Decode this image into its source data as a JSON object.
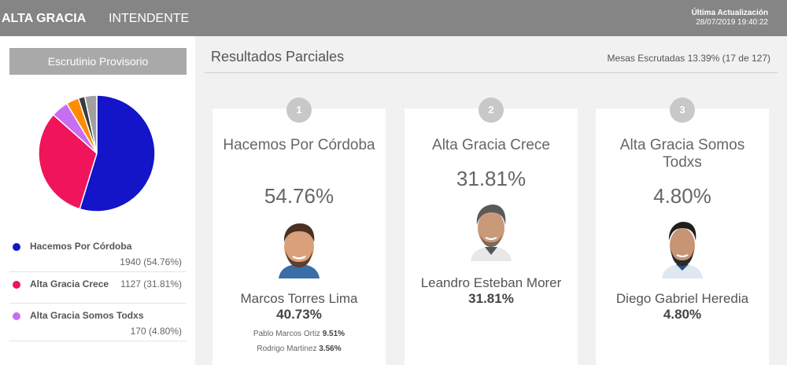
{
  "header": {
    "city": "ALTA GRACIA",
    "office": "INTENDENTE",
    "update_label": "Última Actualización",
    "update_time": "28/07/2019 19:40:22"
  },
  "sidebar": {
    "title": "Escrutinio Provisorio",
    "legend": [
      {
        "name": "Hacemos Por Córdoba",
        "votes": "1940 (54.76%)",
        "color": "#1414c8"
      },
      {
        "name": "Alta Gracia Crece",
        "votes": "1127 (31.81%)",
        "color": "#f0145a"
      },
      {
        "name": "Alta Gracia Somos Todxs",
        "votes": "170 (4.80%)",
        "color": "#c86ef0"
      }
    ]
  },
  "pie": {
    "slices": [
      {
        "value": 54.76,
        "color": "#1414c8"
      },
      {
        "value": 31.81,
        "color": "#f0145a"
      },
      {
        "value": 4.8,
        "color": "#c86ef0"
      },
      {
        "value": 3.5,
        "color": "#ff8c00"
      },
      {
        "value": 1.8,
        "color": "#3a3a3a"
      },
      {
        "value": 3.33,
        "color": "#a0a0a0"
      }
    ]
  },
  "main": {
    "title": "Resultados Parciales",
    "mesas": "Mesas Escrutadas 13.39% (17 de 127)"
  },
  "cards": [
    {
      "rank": "1",
      "party": "Hacemos Por Córdoba",
      "pct": "54.76%",
      "candidate": "Marcos Torres Lima",
      "candidate_pct": "40.73%",
      "sub": [
        {
          "name": "Pablo Marcos Ortiz",
          "pct": "9.51%"
        },
        {
          "name": "Rodrigo Martinez",
          "pct": "3.56%"
        }
      ]
    },
    {
      "rank": "2",
      "party": "Alta Gracia Crece",
      "pct": "31.81%",
      "candidate": "Leandro Esteban Morer",
      "candidate_pct": "31.81%"
    },
    {
      "rank": "3",
      "party": "Alta Gracia Somos Todxs",
      "pct": "4.80%",
      "candidate": "Diego Gabriel Heredia",
      "candidate_pct": "4.80%"
    }
  ]
}
